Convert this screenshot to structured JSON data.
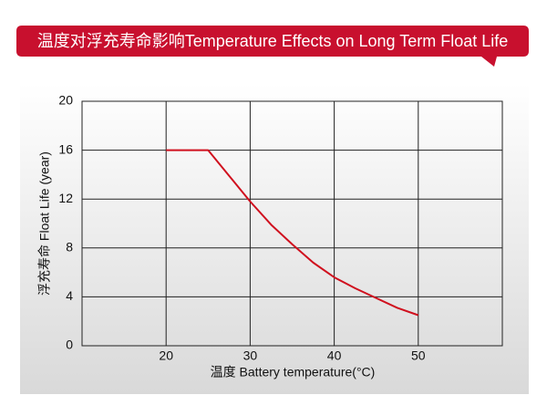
{
  "chart_data": {
    "type": "line",
    "title": "温度对浮充寿命影响Temperature Effects on Long Term Float Life",
    "x_label": "温度  Battery temperature(°C)",
    "y_label": "浮充寿命 Float Life (year)",
    "x": [
      20,
      25,
      27.5,
      30,
      32.5,
      35,
      37.5,
      40,
      42.5,
      45,
      47.5,
      50
    ],
    "values": [
      16,
      16,
      13.9,
      11.8,
      9.9,
      8.3,
      6.8,
      5.6,
      4.7,
      3.9,
      3.1,
      2.5
    ],
    "color": "#d0101e",
    "xlim": [
      10,
      60
    ],
    "xticks": [
      20,
      30,
      40,
      50
    ],
    "ylim": [
      0,
      20
    ],
    "yticks": [
      0,
      4,
      8,
      12,
      16,
      20
    ],
    "grid": true
  }
}
